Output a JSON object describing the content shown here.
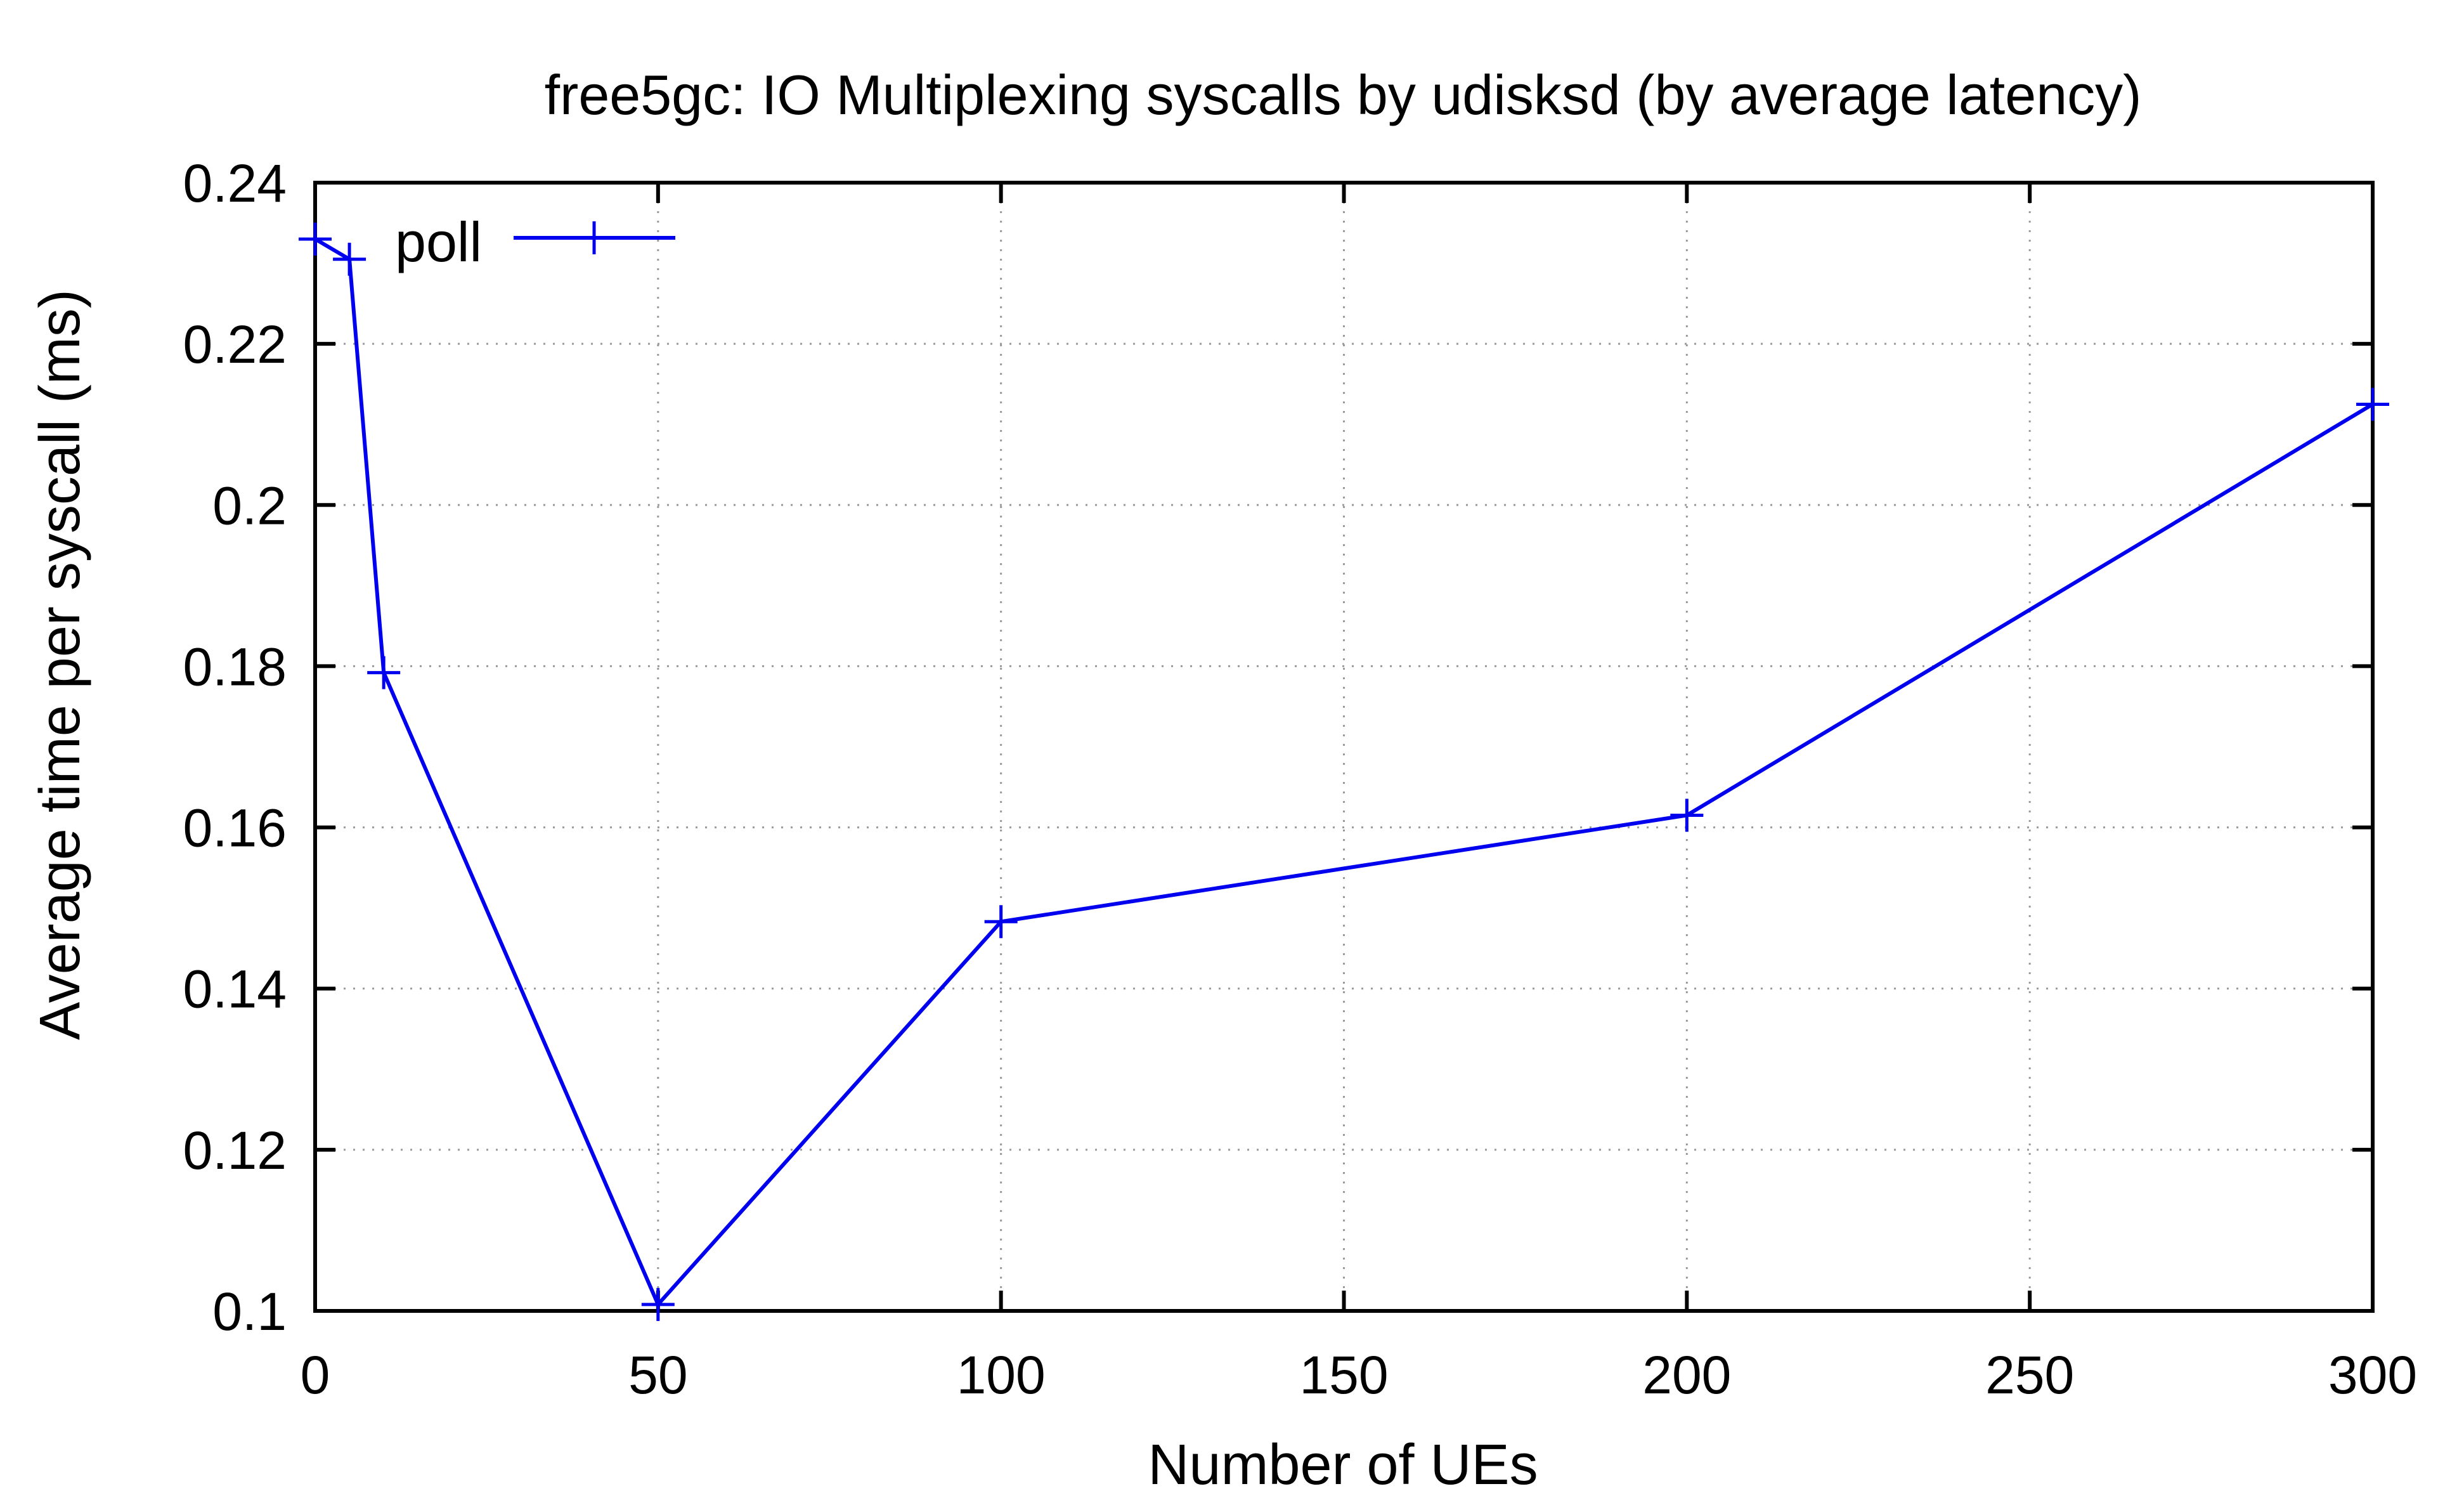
{
  "chart_data": {
    "type": "line",
    "title": "free5gc: IO Multiplexing syscalls by udisksd (by average latency)",
    "xlabel": "Number of UEs",
    "ylabel": "Average time per syscall (ms)",
    "xlim": [
      0,
      300
    ],
    "ylim": [
      0.1,
      0.24
    ],
    "x_ticks": [
      0,
      50,
      100,
      150,
      200,
      250,
      300
    ],
    "x_tick_labels": [
      "0",
      "50",
      "100",
      "150",
      "200",
      "250",
      "300"
    ],
    "y_ticks": [
      0.1,
      0.12,
      0.14,
      0.16,
      0.18,
      0.2,
      0.22,
      0.24
    ],
    "y_tick_labels": [
      "0.1",
      "0.12",
      "0.14",
      "0.16",
      "0.18",
      "0.2",
      "0.22",
      "0.24"
    ],
    "grid": true,
    "legend_position": "top-left",
    "series": [
      {
        "name": "poll",
        "color": "#0000ee",
        "marker": "plus",
        "x": [
          0,
          5,
          10,
          50,
          100,
          200,
          300
        ],
        "y": [
          0.233,
          0.2305,
          0.1792,
          0.1008,
          0.1483,
          0.1615,
          0.2125
        ]
      }
    ]
  }
}
